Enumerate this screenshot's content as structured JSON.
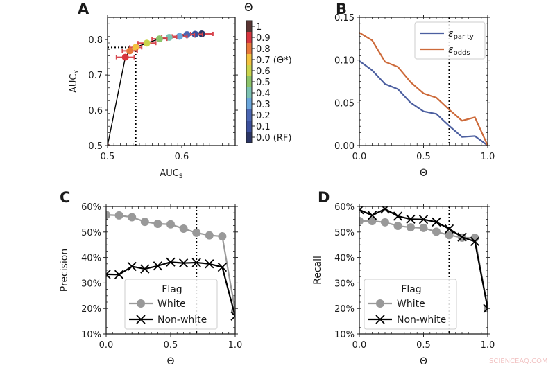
{
  "watermark": "SCIENCEAQ.COM",
  "chart_data": [
    {
      "panel": "A",
      "type": "scatter",
      "xlabel_main": "AUC",
      "xlabel_sub": "S",
      "ylabel_main": "AUC",
      "ylabel_sub": "Y",
      "xlim": [
        0.5,
        0.672
      ],
      "ylim": [
        0.5,
        0.863
      ],
      "xticks": [
        0.5,
        0.6
      ],
      "xtick_labels": [
        "0.5",
        "0.6"
      ],
      "yticks": [
        0.5,
        0.6,
        0.7,
        0.8
      ],
      "ytick_labels": [
        "0.5",
        "0.6",
        "0.7",
        "0.8"
      ],
      "theta": [
        0.0,
        0.1,
        0.2,
        0.3,
        0.4,
        0.5,
        0.6,
        0.7,
        0.8,
        0.9,
        1.0
      ],
      "x": [
        0.627,
        0.618,
        0.607,
        0.597,
        0.583,
        0.57,
        0.553,
        0.538,
        0.53,
        0.524,
        0.5
      ],
      "y": [
        0.816,
        0.815,
        0.814,
        0.809,
        0.806,
        0.802,
        0.79,
        0.778,
        0.768,
        0.75,
        0.5
      ],
      "xerr": [
        0.015,
        0.01,
        0.01,
        0.01,
        0.01,
        0.01,
        0.012,
        0.008,
        0.01,
        0.012,
        0
      ],
      "colors": [
        "#2b3566",
        "#3b4f9c",
        "#4a66b3",
        "#6aa6dc",
        "#7cc2b2",
        "#8cc46a",
        "#cad44c",
        "#f3c23f",
        "#e8773a",
        "#d8353f",
        "#5a3533"
      ],
      "reference": {
        "x": 0.538,
        "y": 0.778
      },
      "colorbar": {
        "title": "Θ",
        "labels": [
          "1",
          "0.9",
          "0.8",
          "0.7 (Θ*)",
          "0.6",
          "0.5",
          "0.4",
          "0.3",
          "0.2",
          "0.1",
          "0.0 (RF)"
        ]
      }
    },
    {
      "panel": "B",
      "type": "line",
      "xlabel": "Θ",
      "ylabel": "",
      "xlim": [
        0,
        1
      ],
      "ylim": [
        0,
        0.15
      ],
      "xticks": [
        0,
        0.5,
        1
      ],
      "xtick_labels": [
        "0.0",
        "0.5",
        "1.0"
      ],
      "yticks": [
        0,
        0.05,
        0.1,
        0.15
      ],
      "ytick_labels": [
        "0.00",
        "0.05",
        "0.10",
        "0.15"
      ],
      "x": [
        0,
        0.1,
        0.2,
        0.3,
        0.4,
        0.5,
        0.6,
        0.7,
        0.8,
        0.9,
        1.0
      ],
      "reference_x": 0.7,
      "legend_position": "top-right",
      "series": [
        {
          "name_main": "ε",
          "name_sub": "parity",
          "color": "#4c5fa0",
          "values": [
            0.099,
            0.088,
            0.072,
            0.066,
            0.05,
            0.04,
            0.037,
            0.023,
            0.01,
            0.011,
            0.0
          ]
        },
        {
          "name_main": "ε",
          "name_sub": "odds",
          "color": "#cd6a3a",
          "values": [
            0.132,
            0.123,
            0.098,
            0.092,
            0.074,
            0.061,
            0.056,
            0.042,
            0.029,
            0.033,
            0.0
          ]
        }
      ]
    },
    {
      "panel": "C",
      "type": "line",
      "xlabel": "Θ",
      "ylabel": "Precision",
      "xlim": [
        0,
        1
      ],
      "ylim": [
        0.1,
        0.6
      ],
      "xticks": [
        0,
        0.5,
        1
      ],
      "xtick_labels": [
        "0.0",
        "0.5",
        "1.0"
      ],
      "yticks": [
        0.1,
        0.2,
        0.3,
        0.4,
        0.5,
        0.6
      ],
      "ytick_labels": [
        "10%",
        "20%",
        "30%",
        "40%",
        "50%",
        "60%"
      ],
      "x": [
        0,
        0.1,
        0.2,
        0.3,
        0.4,
        0.5,
        0.6,
        0.7,
        0.8,
        0.9,
        1.0
      ],
      "reference_x": 0.7,
      "legend_title": "Flag",
      "legend_position": "lower-center",
      "series": [
        {
          "name": "White",
          "marker": "circle",
          "color": "#999999",
          "values": [
            0.567,
            0.565,
            0.558,
            0.54,
            0.532,
            0.53,
            0.513,
            0.497,
            0.487,
            0.483,
            0.19
          ]
        },
        {
          "name": "Non-white",
          "marker": "x",
          "color": "#000000",
          "values": [
            0.334,
            0.333,
            0.365,
            0.355,
            0.367,
            0.382,
            0.378,
            0.38,
            0.375,
            0.362,
            0.17
          ]
        }
      ]
    },
    {
      "panel": "D",
      "type": "line",
      "xlabel": "Θ",
      "ylabel": "Recall",
      "xlim": [
        0,
        1
      ],
      "ylim": [
        0.1,
        0.6
      ],
      "xticks": [
        0,
        0.5,
        1
      ],
      "xtick_labels": [
        "0.0",
        "0.5",
        "1.0"
      ],
      "yticks": [
        0.1,
        0.2,
        0.3,
        0.4,
        0.5,
        0.6
      ],
      "ytick_labels": [
        "10%",
        "20%",
        "30%",
        "40%",
        "50%",
        "60%"
      ],
      "x": [
        0,
        0.1,
        0.2,
        0.3,
        0.4,
        0.5,
        0.6,
        0.7,
        0.8,
        0.9,
        1.0
      ],
      "reference_x": 0.7,
      "legend_title": "Flag",
      "legend_position": "lower-left",
      "series": [
        {
          "name": "White",
          "marker": "circle",
          "color": "#999999",
          "values": [
            0.543,
            0.543,
            0.538,
            0.524,
            0.518,
            0.516,
            0.501,
            0.488,
            0.478,
            0.477,
            0.2
          ]
        },
        {
          "name": "Non-white",
          "marker": "x",
          "color": "#000000",
          "values": [
            0.587,
            0.565,
            0.59,
            0.562,
            0.55,
            0.549,
            0.539,
            0.512,
            0.48,
            0.463,
            0.2
          ]
        }
      ]
    }
  ]
}
